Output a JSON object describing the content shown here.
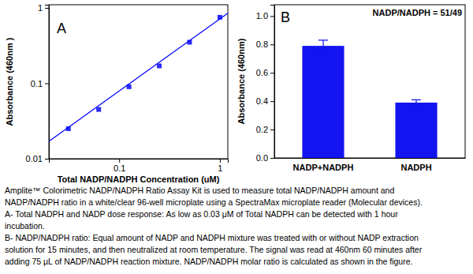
{
  "chart_data": [
    {
      "type": "scatter",
      "title": "A",
      "xlabel": "Total NADP/NADPH Concentration (uM)",
      "ylabel": "Absorbance (460nm )",
      "log": true,
      "xlim": [
        0.02,
        1.2
      ],
      "ylim": [
        0.01,
        1.1
      ],
      "xticks": [
        0.1,
        1
      ],
      "yticks": [
        0.01,
        0.1,
        1
      ],
      "series": [
        {
          "type": "scatter",
          "marker": "square",
          "color": "#2a2aff",
          "x": [
            0.03125,
            0.0625,
            0.125,
            0.25,
            0.5,
            1
          ],
          "values": [
            0.025,
            0.045,
            0.09,
            0.17,
            0.35,
            0.75
          ]
        },
        {
          "type": "line",
          "line_style": "solid",
          "color": "#0000ff",
          "x": [
            0.02,
            1.2
          ],
          "values": [
            0.017,
            0.85
          ]
        }
      ]
    },
    {
      "type": "bar",
      "title": "B",
      "annotation": "NADP/NADPH = 51/49",
      "ylabel": "Absorbance (460nm)",
      "categories": [
        "NADP+NADPH",
        "NADPH"
      ],
      "values": [
        0.79,
        0.39
      ],
      "errors": [
        0.04,
        0.02
      ],
      "color": "#1414f0",
      "ylim": [
        0,
        1.08
      ],
      "yticks": [
        {
          "value": 0,
          "label": "0.0"
        },
        0.2,
        0.4,
        0.6,
        0.8,
        {
          "value": 1,
          "label": "1.0"
        }
      ]
    }
  ],
  "caption": [
    "Amplite™ Colorimetric NADP/NADPH Ratio Assay Kit is used to measure total NADP/NADPH amount and",
    "NADP/NADPH ratio in a white/clear 96-well microplate using a SpectraMax microplate reader (Molecular devices).",
    "A- Total NADPH and NADP dose response:  As low as 0.03 μM of Total NADPH can be detected with 1 hour",
    "incubation.",
    "B- NADP/NADPH ratio: Equal amount of NADP and NADPH mixture was treated with or without NADP extraction",
    "solution for 15 minutes, and then neutralized at room temperature. The signal was read at 460nm 60 minutes after",
    "adding 75 μL of NADP/NADPH reaction mixture. NADP/NADPH molar ratio is calculated as shown in the figure."
  ]
}
